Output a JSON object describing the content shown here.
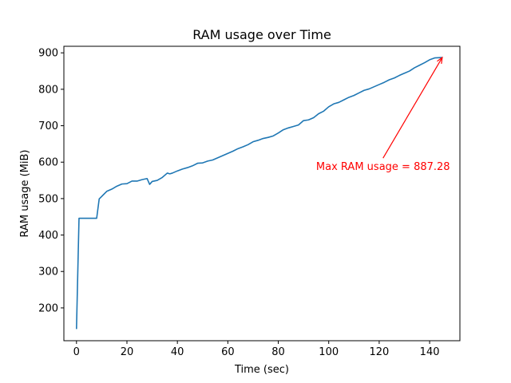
{
  "chart_data": {
    "type": "line",
    "title": "RAM usage over Time",
    "xlabel": "Time (sec)",
    "ylabel": "RAM usage (MiB)",
    "xlim": [
      -5,
      152
    ],
    "ylim": [
      110,
      918
    ],
    "xticks": [
      0,
      20,
      40,
      60,
      80,
      100,
      120,
      140
    ],
    "yticks": [
      200,
      300,
      400,
      500,
      600,
      700,
      800,
      900
    ],
    "grid": false,
    "legend": "none",
    "series": [
      {
        "color": "#1f77b4",
        "x": [
          0,
          1,
          2,
          4,
          6,
          8,
          9,
          10,
          12,
          14,
          16,
          18,
          20,
          22,
          24,
          26,
          28,
          29,
          30,
          32,
          34,
          36,
          37,
          38,
          40,
          42,
          44,
          46,
          48,
          50,
          52,
          54,
          56,
          58,
          60,
          62,
          64,
          66,
          68,
          70,
          72,
          74,
          76,
          78,
          80,
          82,
          84,
          86,
          88,
          90,
          92,
          94,
          96,
          98,
          100,
          102,
          104,
          106,
          108,
          110,
          112,
          114,
          116,
          118,
          120,
          122,
          124,
          126,
          128,
          130,
          132,
          134,
          136,
          138,
          140,
          142,
          145
        ],
        "y": [
          142,
          446,
          446,
          446,
          446,
          446,
          499,
          506,
          520,
          526,
          534,
          540,
          541,
          548,
          548,
          552,
          555,
          539,
          547,
          550,
          558,
          570,
          568,
          570,
          576,
          581,
          585,
          590,
          597,
          598,
          603,
          606,
          612,
          618,
          624,
          630,
          637,
          642,
          648,
          656,
          660,
          665,
          668,
          672,
          680,
          689,
          694,
          698,
          702,
          714,
          716,
          722,
          733,
          740,
          752,
          760,
          764,
          771,
          778,
          783,
          790,
          797,
          801,
          807,
          813,
          819,
          826,
          831,
          838,
          844,
          850,
          859,
          866,
          873,
          881,
          886,
          887.28
        ]
      }
    ],
    "annotations": [
      {
        "text": "Max RAM usage = 887.28",
        "color": "#ff0000",
        "xy": [
          145,
          887.28
        ],
        "xytext": [
          95,
          588
        ]
      }
    ]
  }
}
